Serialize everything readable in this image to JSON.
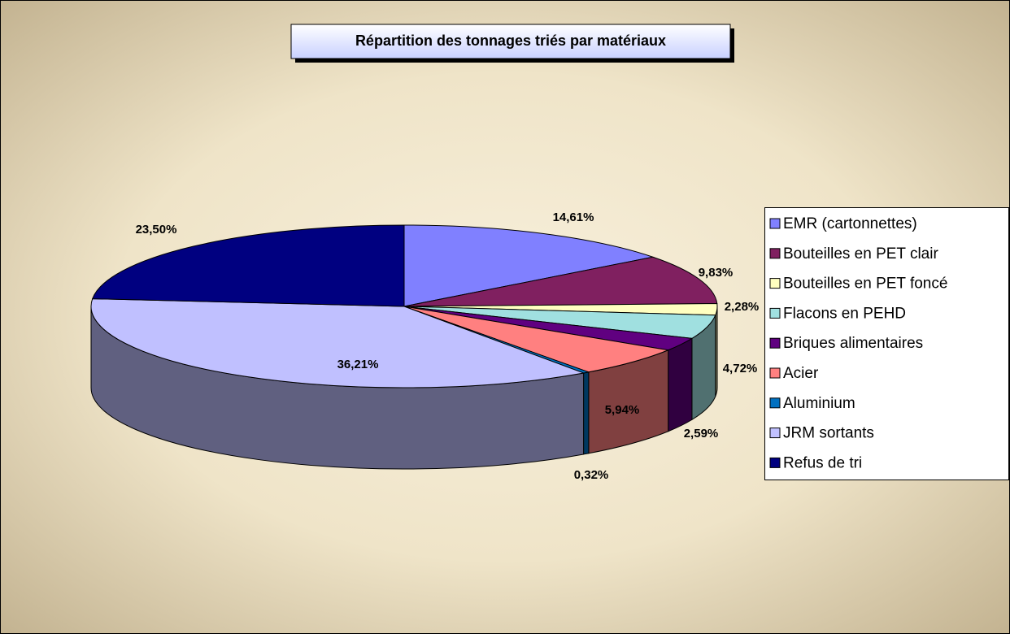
{
  "chart_data": {
    "type": "pie3d",
    "title": "Répartition des tonnages triés par matériaux",
    "categories": [
      "EMR (cartonnettes)",
      "Bouteilles en PET clair",
      "Bouteilles en PET foncé",
      "Flacons en PEHD",
      "Briques alimentaires",
      "Acier",
      "Aluminium",
      "JRM sortants",
      "Refus de tri"
    ],
    "values": [
      14.61,
      9.83,
      2.28,
      4.72,
      2.59,
      5.94,
      0.32,
      36.21,
      23.5
    ],
    "value_labels": [
      "14,61%",
      "9,83%",
      "2,28%",
      "4,72%",
      "2,59%",
      "5,94%",
      "0,32%",
      "36,21%",
      "23,50%"
    ],
    "colors": [
      "#8080ff",
      "#802060",
      "#ffffc0",
      "#a0e0e0",
      "#600080",
      "#ff8080",
      "#0070c0",
      "#c0c0ff",
      "#000080"
    ],
    "legend": "right"
  }
}
